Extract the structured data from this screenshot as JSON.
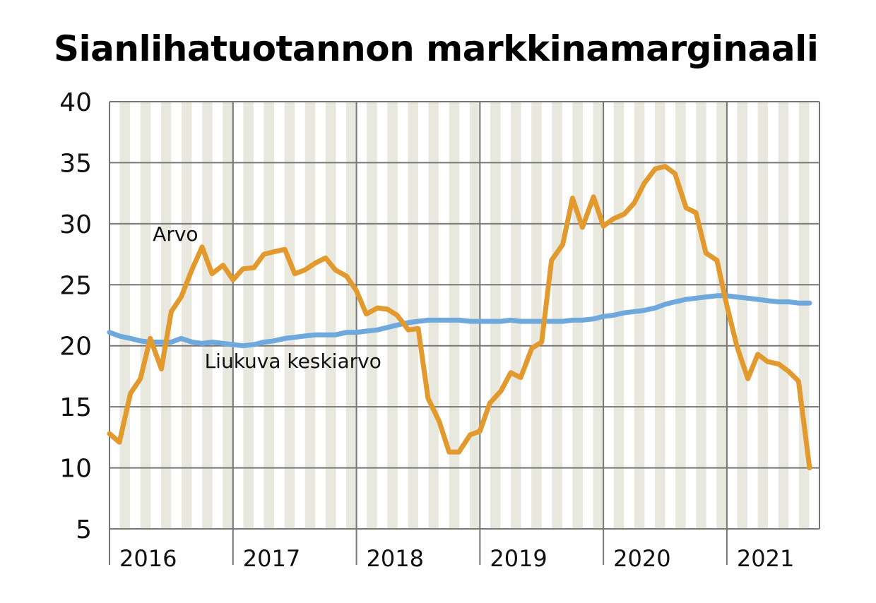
{
  "chart_data": {
    "type": "line",
    "title": "Sianlihatuotannon markkinamarginaali",
    "xlabel": "",
    "ylabel": "",
    "ylim": [
      5,
      40
    ],
    "y_ticks": [
      5,
      10,
      15,
      20,
      25,
      30,
      35,
      40
    ],
    "x_range": [
      2016.0,
      2021.75
    ],
    "years": [
      "2016",
      "2017",
      "2018",
      "2019",
      "2020",
      "2021"
    ],
    "grid": true,
    "colors": {
      "arvo": "#E29A2E",
      "liukuva": "#6FA8DC",
      "month_band": "#E9E8DE",
      "gridline": "#777777"
    },
    "series": [
      {
        "name": "Arvo",
        "points": [
          [
            2016.0,
            12.8
          ],
          [
            2016.08,
            12.1
          ],
          [
            2016.17,
            16.1
          ],
          [
            2016.25,
            17.3
          ],
          [
            2016.33,
            20.6
          ],
          [
            2016.42,
            18.1
          ],
          [
            2016.5,
            22.8
          ],
          [
            2016.58,
            24.0
          ],
          [
            2016.67,
            26.3
          ],
          [
            2016.75,
            28.1
          ],
          [
            2016.83,
            25.9
          ],
          [
            2016.92,
            26.6
          ],
          [
            2017.0,
            25.4
          ],
          [
            2017.08,
            26.3
          ],
          [
            2017.17,
            26.4
          ],
          [
            2017.25,
            27.5
          ],
          [
            2017.33,
            27.7
          ],
          [
            2017.42,
            27.9
          ],
          [
            2017.5,
            25.9
          ],
          [
            2017.58,
            26.2
          ],
          [
            2017.67,
            26.8
          ],
          [
            2017.75,
            27.2
          ],
          [
            2017.83,
            26.2
          ],
          [
            2017.92,
            25.7
          ],
          [
            2018.0,
            24.5
          ],
          [
            2018.08,
            22.6
          ],
          [
            2018.17,
            23.1
          ],
          [
            2018.25,
            23.0
          ],
          [
            2018.33,
            22.5
          ],
          [
            2018.42,
            21.3
          ],
          [
            2018.5,
            21.4
          ],
          [
            2018.58,
            15.7
          ],
          [
            2018.67,
            13.8
          ],
          [
            2018.75,
            11.3
          ],
          [
            2018.83,
            11.3
          ],
          [
            2018.92,
            12.7
          ],
          [
            2019.0,
            13.0
          ],
          [
            2019.08,
            15.3
          ],
          [
            2019.17,
            16.3
          ],
          [
            2019.25,
            17.8
          ],
          [
            2019.33,
            17.4
          ],
          [
            2019.42,
            19.8
          ],
          [
            2019.5,
            20.3
          ],
          [
            2019.58,
            27.0
          ],
          [
            2019.67,
            28.3
          ],
          [
            2019.75,
            32.1
          ],
          [
            2019.83,
            29.7
          ],
          [
            2019.92,
            32.2
          ],
          [
            2020.0,
            29.8
          ],
          [
            2020.08,
            30.4
          ],
          [
            2020.17,
            30.8
          ],
          [
            2020.25,
            31.7
          ],
          [
            2020.33,
            33.3
          ],
          [
            2020.42,
            34.5
          ],
          [
            2020.5,
            34.7
          ],
          [
            2020.58,
            34.1
          ],
          [
            2020.67,
            31.3
          ],
          [
            2020.75,
            30.9
          ],
          [
            2020.83,
            27.6
          ],
          [
            2020.92,
            27.0
          ],
          [
            2021.0,
            23.3
          ],
          [
            2021.08,
            20.0
          ],
          [
            2021.17,
            17.3
          ],
          [
            2021.25,
            19.3
          ],
          [
            2021.33,
            18.7
          ],
          [
            2021.42,
            18.5
          ],
          [
            2021.5,
            17.9
          ],
          [
            2021.58,
            17.1
          ],
          [
            2021.67,
            10.0
          ]
        ]
      },
      {
        "name": "Liukuva keskiarvo",
        "points": [
          [
            2016.0,
            21.1
          ],
          [
            2016.08,
            20.8
          ],
          [
            2016.17,
            20.6
          ],
          [
            2016.25,
            20.4
          ],
          [
            2016.33,
            20.3
          ],
          [
            2016.42,
            20.3
          ],
          [
            2016.5,
            20.3
          ],
          [
            2016.58,
            20.6
          ],
          [
            2016.67,
            20.3
          ],
          [
            2016.75,
            20.2
          ],
          [
            2016.83,
            20.3
          ],
          [
            2016.92,
            20.2
          ],
          [
            2017.0,
            20.1
          ],
          [
            2017.08,
            20.0
          ],
          [
            2017.17,
            20.1
          ],
          [
            2017.25,
            20.3
          ],
          [
            2017.33,
            20.4
          ],
          [
            2017.42,
            20.6
          ],
          [
            2017.5,
            20.7
          ],
          [
            2017.58,
            20.8
          ],
          [
            2017.67,
            20.9
          ],
          [
            2017.75,
            20.9
          ],
          [
            2017.83,
            20.9
          ],
          [
            2017.92,
            21.1
          ],
          [
            2018.0,
            21.1
          ],
          [
            2018.08,
            21.2
          ],
          [
            2018.17,
            21.3
          ],
          [
            2018.25,
            21.5
          ],
          [
            2018.33,
            21.7
          ],
          [
            2018.42,
            21.9
          ],
          [
            2018.5,
            22.0
          ],
          [
            2018.58,
            22.1
          ],
          [
            2018.67,
            22.1
          ],
          [
            2018.75,
            22.1
          ],
          [
            2018.83,
            22.1
          ],
          [
            2018.92,
            22.0
          ],
          [
            2019.0,
            22.0
          ],
          [
            2019.08,
            22.0
          ],
          [
            2019.17,
            22.0
          ],
          [
            2019.25,
            22.1
          ],
          [
            2019.33,
            22.0
          ],
          [
            2019.42,
            22.0
          ],
          [
            2019.5,
            22.0
          ],
          [
            2019.58,
            22.0
          ],
          [
            2019.67,
            22.0
          ],
          [
            2019.75,
            22.1
          ],
          [
            2019.83,
            22.1
          ],
          [
            2019.92,
            22.2
          ],
          [
            2020.0,
            22.4
          ],
          [
            2020.08,
            22.5
          ],
          [
            2020.17,
            22.7
          ],
          [
            2020.25,
            22.8
          ],
          [
            2020.33,
            22.9
          ],
          [
            2020.42,
            23.1
          ],
          [
            2020.5,
            23.4
          ],
          [
            2020.58,
            23.6
          ],
          [
            2020.67,
            23.8
          ],
          [
            2020.75,
            23.9
          ],
          [
            2020.83,
            24.0
          ],
          [
            2020.92,
            24.1
          ],
          [
            2021.0,
            24.1
          ],
          [
            2021.08,
            24.0
          ],
          [
            2021.17,
            23.9
          ],
          [
            2021.25,
            23.8
          ],
          [
            2021.33,
            23.7
          ],
          [
            2021.42,
            23.6
          ],
          [
            2021.5,
            23.6
          ],
          [
            2021.58,
            23.5
          ],
          [
            2021.67,
            23.5
          ]
        ]
      }
    ],
    "annotations": [
      {
        "text": "Arvo",
        "series": "Arvo",
        "x": 2016.35,
        "y": 28.6
      },
      {
        "text": "Liukuva keskiarvo",
        "series": "Liukuva keskiarvo",
        "x": 2016.77,
        "y": 18.2
      }
    ]
  }
}
